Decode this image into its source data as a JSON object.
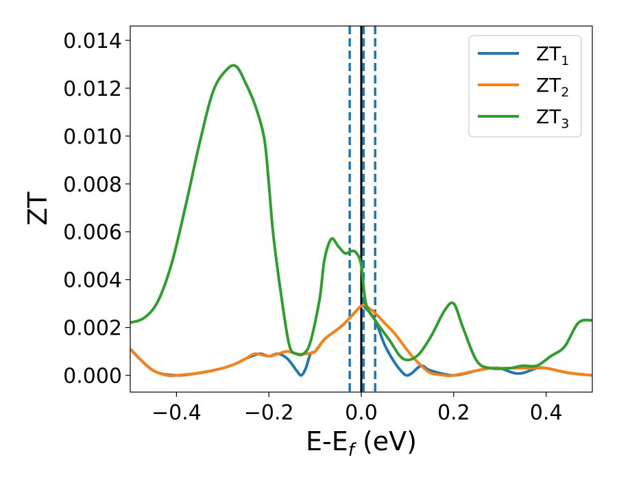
{
  "chart_data": {
    "type": "line",
    "xlabel": "E-E",
    "xlabel_sub": "f",
    "xlabel_unit": " (eV)",
    "ylabel": "ZT",
    "xlim": [
      -0.5,
      0.5
    ],
    "ylim": [
      -0.0007,
      0.0146
    ],
    "x_ticks": [
      -0.4,
      -0.2,
      0.0,
      0.2,
      0.4
    ],
    "x_tick_labels": [
      "−0.4",
      "−0.2",
      "0.0",
      "0.2",
      "0.4"
    ],
    "y_ticks": [
      0.0,
      0.002,
      0.004,
      0.006,
      0.008,
      0.01,
      0.012,
      0.014
    ],
    "y_tick_labels": [
      "0.000",
      "0.002",
      "0.004",
      "0.006",
      "0.008",
      "0.010",
      "0.012",
      "0.014"
    ],
    "grid": false,
    "legend_position": "top-right",
    "vertical_lines": [
      {
        "x": 0.0,
        "color": "#000000",
        "style": "solid"
      },
      {
        "x": -0.025,
        "color": "#1f77b4",
        "style": "dashed"
      },
      {
        "x": 0.005,
        "color": "#1f77b4",
        "style": "dashed"
      },
      {
        "x": 0.03,
        "color": "#1f77b4",
        "style": "dashed"
      }
    ],
    "series": [
      {
        "name": "ZT",
        "sub": "1",
        "color": "#1f77b4",
        "x": [
          -0.5,
          -0.45,
          -0.4,
          -0.35,
          -0.3,
          -0.27,
          -0.25,
          -0.22,
          -0.2,
          -0.18,
          -0.16,
          -0.14,
          -0.13,
          -0.12,
          -0.11,
          -0.1,
          -0.08,
          -0.06,
          -0.04,
          -0.02,
          0.0,
          0.01,
          0.03,
          0.05,
          0.07,
          0.09,
          0.1,
          0.11,
          0.13,
          0.15,
          0.2,
          0.25,
          0.28,
          0.3,
          0.33,
          0.35,
          0.38,
          0.4,
          0.45,
          0.5
        ],
        "y": [
          0.0011,
          0.0002,
          0.0,
          0.0001,
          0.0003,
          0.0005,
          0.0007,
          0.0009,
          0.0008,
          0.0009,
          0.0007,
          0.0002,
          0.0,
          0.0003,
          0.0009,
          0.001,
          0.0015,
          0.0018,
          0.0021,
          0.0025,
          0.0029,
          0.0028,
          0.0023,
          0.0013,
          0.0006,
          0.0001,
          0.0,
          0.0001,
          0.0004,
          0.0002,
          0.0,
          0.0002,
          0.0003,
          0.0003,
          0.0001,
          0.0001,
          0.0003,
          0.0003,
          0.0001,
          0.0
        ]
      },
      {
        "name": "ZT",
        "sub": "2",
        "color": "#ff7f0e",
        "x": [
          -0.5,
          -0.48,
          -0.45,
          -0.42,
          -0.4,
          -0.35,
          -0.3,
          -0.27,
          -0.25,
          -0.23,
          -0.2,
          -0.18,
          -0.16,
          -0.14,
          -0.12,
          -0.1,
          -0.08,
          -0.06,
          -0.04,
          -0.02,
          0.0,
          0.01,
          0.03,
          0.05,
          0.07,
          0.09,
          0.11,
          0.13,
          0.15,
          0.18,
          0.2,
          0.25,
          0.28,
          0.3,
          0.33,
          0.35,
          0.38,
          0.4,
          0.45,
          0.5
        ],
        "y": [
          0.0011,
          0.0007,
          0.0002,
          0.0,
          0.0,
          0.0001,
          0.0003,
          0.0005,
          0.0007,
          0.0009,
          0.0008,
          0.0009,
          0.001,
          0.0009,
          0.0009,
          0.001,
          0.0015,
          0.0018,
          0.0021,
          0.0025,
          0.0029,
          0.0029,
          0.0026,
          0.0022,
          0.0018,
          0.0013,
          0.0008,
          0.0004,
          0.0001,
          0.0,
          0.0,
          0.0002,
          0.0003,
          0.0003,
          0.0003,
          0.0003,
          0.0003,
          0.0003,
          0.0001,
          0.0
        ]
      },
      {
        "name": "ZT",
        "sub": "3",
        "color": "#2ca02c",
        "x": [
          -0.5,
          -0.47,
          -0.44,
          -0.41,
          -0.38,
          -0.35,
          -0.32,
          -0.29,
          -0.27,
          -0.25,
          -0.23,
          -0.21,
          -0.2,
          -0.19,
          -0.17,
          -0.155,
          -0.14,
          -0.125,
          -0.11,
          -0.09,
          -0.08,
          -0.065,
          -0.05,
          -0.035,
          -0.02,
          -0.01,
          0.0,
          0.01,
          0.03,
          0.06,
          0.09,
          0.12,
          0.15,
          0.18,
          0.2,
          0.22,
          0.25,
          0.28,
          0.32,
          0.35,
          0.38,
          0.41,
          0.44,
          0.47,
          0.5
        ],
        "y": [
          0.0022,
          0.0024,
          0.0031,
          0.0047,
          0.0071,
          0.0097,
          0.0119,
          0.0128,
          0.0129,
          0.0122,
          0.0113,
          0.0099,
          0.008,
          0.0058,
          0.0029,
          0.0012,
          0.0009,
          0.0009,
          0.0014,
          0.0032,
          0.0048,
          0.0057,
          0.0054,
          0.0051,
          0.0052,
          0.0051,
          0.0046,
          0.003,
          0.0023,
          0.0015,
          0.0007,
          0.0008,
          0.0016,
          0.0027,
          0.003,
          0.002,
          0.0006,
          0.0003,
          0.0003,
          0.0004,
          0.0004,
          0.0008,
          0.0012,
          0.0022,
          0.0023
        ]
      }
    ]
  }
}
